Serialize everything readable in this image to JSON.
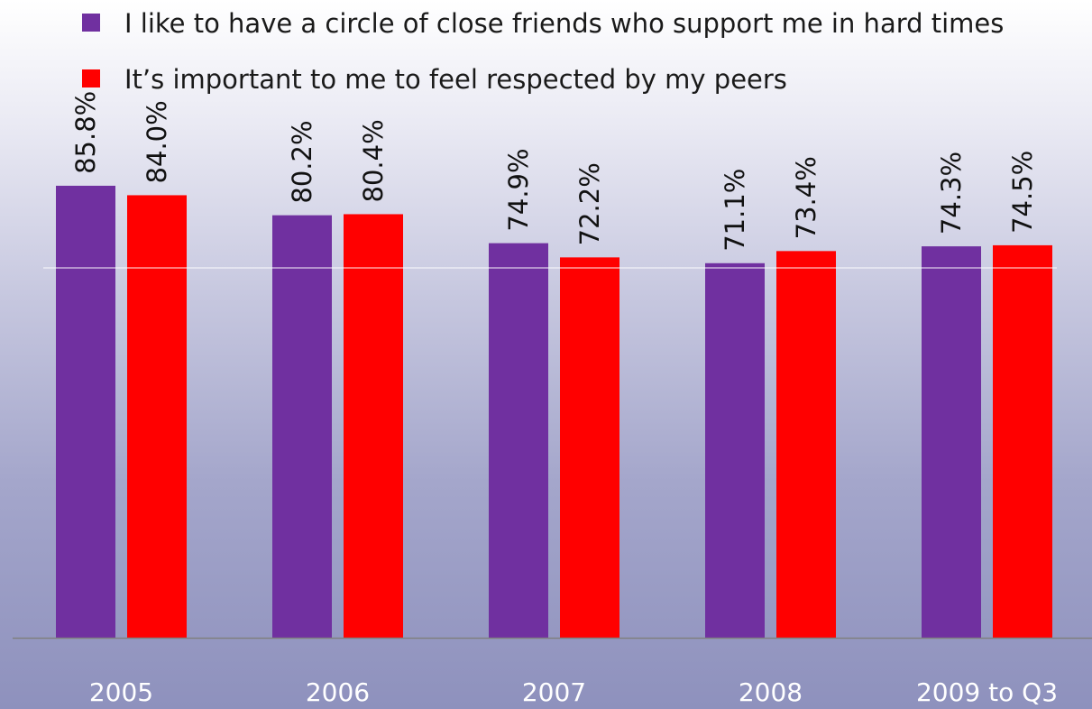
{
  "chart_data": {
    "type": "bar",
    "categories": [
      "2005",
      "2006",
      "2007",
      "2008",
      "2009 to Q3"
    ],
    "series": [
      {
        "name": "I like to have a circle of close friends who support me in hard times",
        "values": [
          85.8,
          80.2,
          74.9,
          71.1,
          74.3
        ],
        "labels": [
          "85.8%",
          "80.2%",
          "74.9%",
          "71.1%",
          "74.3%"
        ],
        "color": "#7030a0"
      },
      {
        "name": "It’s important to me to feel respected by my peers",
        "values": [
          84.0,
          80.4,
          72.2,
          73.4,
          74.5
        ],
        "labels": [
          "84.0%",
          "80.4%",
          "72.2%",
          "73.4%",
          "74.5%"
        ],
        "color": "#ff0000"
      }
    ],
    "title": "",
    "xlabel": "",
    "ylabel": "",
    "ylim": [
      0,
      100
    ],
    "grid": true,
    "legend_position": "top-left"
  }
}
